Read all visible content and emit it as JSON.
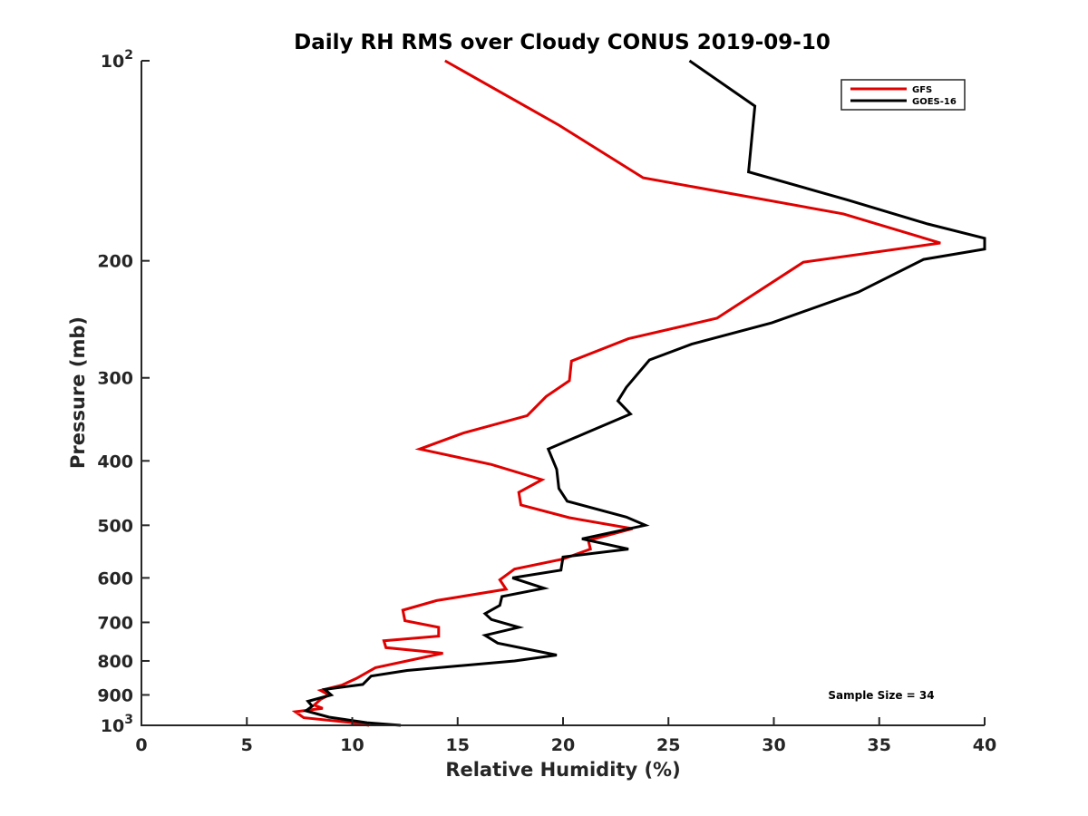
{
  "chart_data": {
    "type": "line",
    "title": "Daily RH RMS over Cloudy CONUS 2019-09-10",
    "xlabel": "Relative Humidity (%)",
    "ylabel": "Pressure (mb)",
    "xlim": [
      0,
      40
    ],
    "ylim": [
      100,
      1000
    ],
    "y_scale": "log",
    "y_reversed": true,
    "grid": false,
    "legend_position": "top-right",
    "x_ticks": [
      0,
      5,
      10,
      15,
      20,
      25,
      30,
      35,
      40
    ],
    "y_ticks": [
      {
        "value": 100,
        "base": "10",
        "exp": "2"
      },
      {
        "value": 200,
        "label": "200"
      },
      {
        "value": 300,
        "label": "300"
      },
      {
        "value": 400,
        "label": "400"
      },
      {
        "value": 500,
        "label": "500"
      },
      {
        "value": 600,
        "label": "600"
      },
      {
        "value": 700,
        "label": "700"
      },
      {
        "value": 800,
        "label": "800"
      },
      {
        "value": 900,
        "label": "900"
      },
      {
        "value": 1000,
        "base": "10",
        "exp": "3"
      }
    ],
    "series": [
      {
        "name": "GFS",
        "color": "#e00000",
        "points": [
          [
            14.4,
            100
          ],
          [
            19.8,
            125
          ],
          [
            23.8,
            150
          ],
          [
            33.3,
            170
          ],
          [
            37.9,
            188
          ],
          [
            31.4,
            201
          ],
          [
            27.3,
            244
          ],
          [
            23.1,
            262
          ],
          [
            20.4,
            283
          ],
          [
            20.3,
            303
          ],
          [
            19.2,
            320
          ],
          [
            18.3,
            342
          ],
          [
            15.3,
            363
          ],
          [
            13.2,
            384
          ],
          [
            16.6,
            405
          ],
          [
            19.0,
            427
          ],
          [
            17.9,
            446
          ],
          [
            18.0,
            466
          ],
          [
            20.3,
            487
          ],
          [
            23.3,
            506
          ],
          [
            21.2,
            527
          ],
          [
            21.3,
            543
          ],
          [
            20.0,
            562
          ],
          [
            17.7,
            582
          ],
          [
            17.0,
            604
          ],
          [
            17.3,
            624
          ],
          [
            14.0,
            649
          ],
          [
            12.4,
            671
          ],
          [
            12.5,
            696
          ],
          [
            14.1,
            712
          ],
          [
            14.1,
            734
          ],
          [
            11.5,
            746
          ],
          [
            11.6,
            764
          ],
          [
            14.3,
            779
          ],
          [
            11.1,
            819
          ],
          [
            10.2,
            850
          ],
          [
            9.5,
            870
          ],
          [
            8.5,
            886
          ],
          [
            8.9,
            900
          ],
          [
            8.5,
            914
          ],
          [
            8.2,
            932
          ],
          [
            8.6,
            943
          ],
          [
            7.3,
            954
          ],
          [
            7.7,
            974
          ],
          [
            9.9,
            990
          ],
          [
            10.8,
            1000
          ]
        ]
      },
      {
        "name": "GOES-16",
        "color": "#000000",
        "points": [
          [
            26.0,
            100
          ],
          [
            29.1,
            117
          ],
          [
            28.8,
            147
          ],
          [
            33.5,
            162
          ],
          [
            37.3,
            176
          ],
          [
            40.0,
            185
          ],
          [
            40.0,
            192
          ],
          [
            37.1,
            199
          ],
          [
            34.0,
            223
          ],
          [
            29.9,
            248
          ],
          [
            26.1,
            267
          ],
          [
            24.1,
            282
          ],
          [
            23.0,
            310
          ],
          [
            22.6,
            325
          ],
          [
            23.2,
            340
          ],
          [
            21.1,
            363
          ],
          [
            19.3,
            384
          ],
          [
            19.7,
            412
          ],
          [
            19.8,
            440
          ],
          [
            20.2,
            460
          ],
          [
            23.0,
            486
          ],
          [
            23.9,
            500
          ],
          [
            20.9,
            524
          ],
          [
            23.1,
            543
          ],
          [
            20.0,
            558
          ],
          [
            19.9,
            584
          ],
          [
            17.6,
            600
          ],
          [
            19.1,
            622
          ],
          [
            17.1,
            640
          ],
          [
            17.0,
            660
          ],
          [
            16.3,
            679
          ],
          [
            16.6,
            693
          ],
          [
            17.9,
            712
          ],
          [
            16.3,
            732
          ],
          [
            16.9,
            752
          ],
          [
            19.7,
            784
          ],
          [
            17.7,
            800
          ],
          [
            12.6,
            827
          ],
          [
            10.9,
            843
          ],
          [
            10.5,
            868
          ],
          [
            8.7,
            883
          ],
          [
            9.0,
            900
          ],
          [
            7.9,
            920
          ],
          [
            8.1,
            936
          ],
          [
            7.8,
            951
          ],
          [
            8.9,
            972
          ],
          [
            10.7,
            991
          ],
          [
            12.3,
            1000
          ]
        ]
      }
    ],
    "annotations": [
      "Sample Size = 34"
    ]
  }
}
